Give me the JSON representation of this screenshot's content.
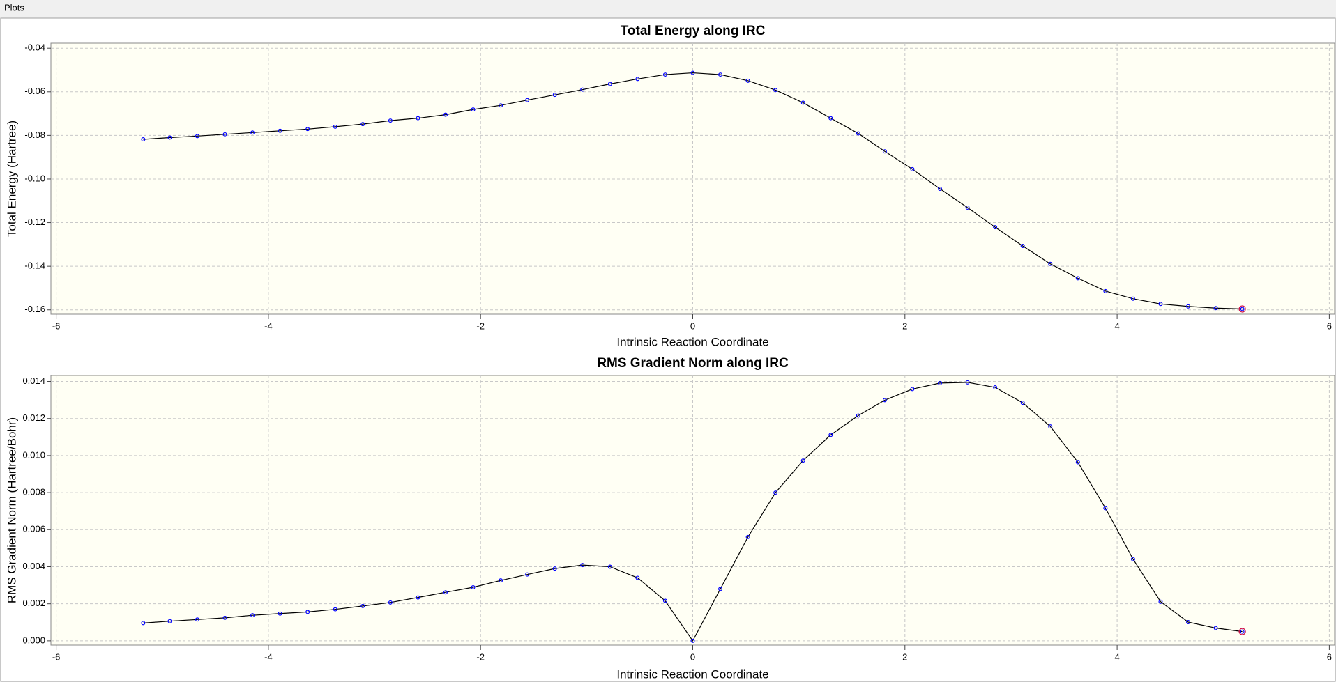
{
  "window_title": "Plots",
  "chart_data": [
    {
      "type": "line",
      "title": "Total Energy along IRC",
      "x_label": "Intrinsic Reaction Coordinate",
      "y_label": "Total Energy (Hartree)",
      "x": [
        -5.18,
        -4.93,
        -4.67,
        -4.41,
        -4.15,
        -3.89,
        -3.63,
        -3.37,
        -3.11,
        -2.85,
        -2.59,
        -2.33,
        -2.07,
        -1.81,
        -1.56,
        -1.3,
        -1.04,
        -0.78,
        -0.52,
        -0.26,
        0,
        0.26,
        0.52,
        0.78,
        1.04,
        1.3,
        1.56,
        1.81,
        2.07,
        2.33,
        2.59,
        2.85,
        3.11,
        3.37,
        3.63,
        3.89,
        4.15,
        4.41,
        4.67,
        4.93,
        5.18
      ],
      "values": [
        -0.0818,
        -0.081,
        -0.0803,
        -0.0795,
        -0.0787,
        -0.0779,
        -0.0771,
        -0.076,
        -0.0748,
        -0.0732,
        -0.0721,
        -0.0705,
        -0.0681,
        -0.0662,
        -0.0638,
        -0.0614,
        -0.059,
        -0.0564,
        -0.0541,
        -0.0521,
        -0.0513,
        -0.0521,
        -0.0549,
        -0.0592,
        -0.065,
        -0.0721,
        -0.0791,
        -0.0873,
        -0.0955,
        -0.1045,
        -0.1131,
        -0.1221,
        -0.1307,
        -0.1389,
        -0.1455,
        -0.1514,
        -0.1549,
        -0.1573,
        -0.1584,
        -0.1592,
        -0.1596
      ],
      "color": "#000000",
      "marker_color": "#0000ff",
      "xlim": [
        -6.05,
        6.05
      ],
      "xticks": [
        -6,
        -4,
        -2,
        0,
        2,
        4,
        6
      ],
      "ylim": [
        -0.162,
        -0.0377
      ],
      "yticks": [
        -0.16,
        -0.14,
        -0.12,
        {
          "value": -0.1,
          "label": "-0.10"
        },
        -0.08,
        -0.06,
        -0.04
      ],
      "grid": true
    },
    {
      "type": "line",
      "title": "RMS Gradient Norm along IRC",
      "x_label": "Intrinsic Reaction Coordinate",
      "y_label": "RMS Gradient Norm (Hartree/Bohr)",
      "x": [
        -5.18,
        -4.93,
        -4.67,
        -4.41,
        -4.15,
        -3.89,
        -3.63,
        -3.37,
        -3.11,
        -2.85,
        -2.59,
        -2.33,
        -2.07,
        -1.81,
        -1.56,
        -1.3,
        -1.04,
        -0.78,
        -0.52,
        -0.26,
        0,
        0.26,
        0.52,
        0.78,
        1.04,
        1.3,
        1.56,
        1.81,
        2.07,
        2.33,
        2.59,
        2.85,
        3.11,
        3.37,
        3.63,
        3.89,
        4.15,
        4.41,
        4.67,
        4.93,
        5.18
      ],
      "values": [
        0.00096,
        0.00106,
        0.00115,
        0.00124,
        0.00138,
        0.00147,
        0.00156,
        0.0017,
        0.00188,
        0.00207,
        0.00234,
        0.00262,
        0.00289,
        0.00326,
        0.00358,
        0.0039,
        0.00409,
        0.004,
        0.0034,
        0.00216,
        0,
        0.0028,
        0.0056,
        0.008,
        0.00973,
        0.01111,
        0.01216,
        0.01299,
        0.01359,
        0.01391,
        0.01395,
        0.01368,
        0.01285,
        0.01157,
        0.00964,
        0.00716,
        0.00441,
        0.00211,
        0.00101,
        0.00069,
        0.0005
      ],
      "color": "#000000",
      "marker_color": "#0000ff",
      "xlim": [
        -6.05,
        6.05
      ],
      "xticks": [
        -6,
        -4,
        -2,
        0,
        2,
        4,
        6
      ],
      "ylim": [
        -0.00023,
        0.01432
      ],
      "yticks": [
        {
          "value": 0,
          "label": "0.000"
        },
        0.002,
        0.004,
        0.006,
        0.008,
        {
          "value": 0.01,
          "label": "0.010"
        },
        0.012,
        0.014
      ],
      "grid": true
    }
  ]
}
